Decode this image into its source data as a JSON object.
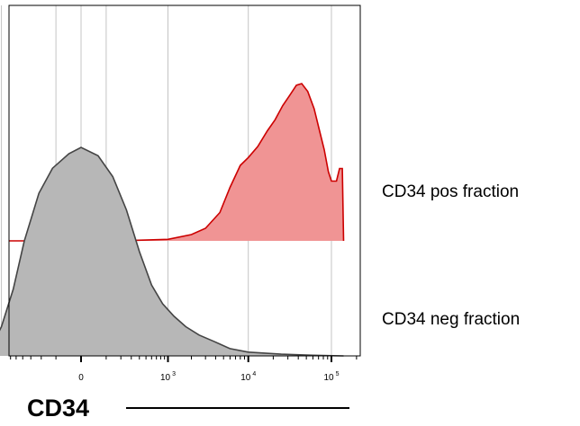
{
  "chart_data": {
    "type": "area",
    "x_scale": "biexponential",
    "xlabel": "CD34",
    "ylabel": "",
    "grid": true,
    "x_ticks": [
      {
        "value": 0,
        "label": "0",
        "exp": ""
      },
      {
        "value": 1000,
        "label": "10",
        "exp": "3"
      },
      {
        "value": 10000,
        "label": "10",
        "exp": "4"
      },
      {
        "value": 100000,
        "label": "10",
        "exp": "5"
      }
    ],
    "series": [
      {
        "name": "CD34 pos fraction",
        "color": "#cc0000",
        "fill": "#f09494",
        "points": [
          [
            -300,
            0.0
          ],
          [
            0,
            0.0
          ],
          [
            300,
            0.002
          ],
          [
            1000,
            0.01
          ],
          [
            2000,
            0.04
          ],
          [
            3000,
            0.08
          ],
          [
            4500,
            0.18
          ],
          [
            6000,
            0.34
          ],
          [
            8000,
            0.48
          ],
          [
            10000,
            0.53
          ],
          [
            13000,
            0.6
          ],
          [
            17000,
            0.7
          ],
          [
            21000,
            0.77
          ],
          [
            26000,
            0.86
          ],
          [
            32000,
            0.93
          ],
          [
            38000,
            0.99
          ],
          [
            44000,
            1.0
          ],
          [
            52000,
            0.95
          ],
          [
            62000,
            0.84
          ],
          [
            72000,
            0.7
          ],
          [
            82000,
            0.58
          ],
          [
            92000,
            0.44
          ],
          [
            100000,
            0.38
          ],
          [
            115000,
            0.38
          ],
          [
            125000,
            0.46
          ],
          [
            135000,
            0.46
          ],
          [
            140000,
            0.0
          ]
        ]
      },
      {
        "name": "CD34 neg fraction",
        "color": "#444444",
        "fill": "#b7b7b7",
        "points": [
          [
            -1500,
            0.0
          ],
          [
            -1100,
            0.04
          ],
          [
            -800,
            0.14
          ],
          [
            -550,
            0.32
          ],
          [
            -380,
            0.55
          ],
          [
            -220,
            0.78
          ],
          [
            -120,
            0.9
          ],
          [
            -40,
            0.97
          ],
          [
            0,
            1.0
          ],
          [
            60,
            0.96
          ],
          [
            140,
            0.86
          ],
          [
            250,
            0.7
          ],
          [
            400,
            0.5
          ],
          [
            600,
            0.34
          ],
          [
            850,
            0.25
          ],
          [
            1200,
            0.19
          ],
          [
            1700,
            0.14
          ],
          [
            2500,
            0.1
          ],
          [
            3800,
            0.07
          ],
          [
            6000,
            0.035
          ],
          [
            10000,
            0.018
          ],
          [
            25000,
            0.008
          ],
          [
            60000,
            0.003
          ],
          [
            140000,
            0.0
          ]
        ]
      }
    ]
  }
}
